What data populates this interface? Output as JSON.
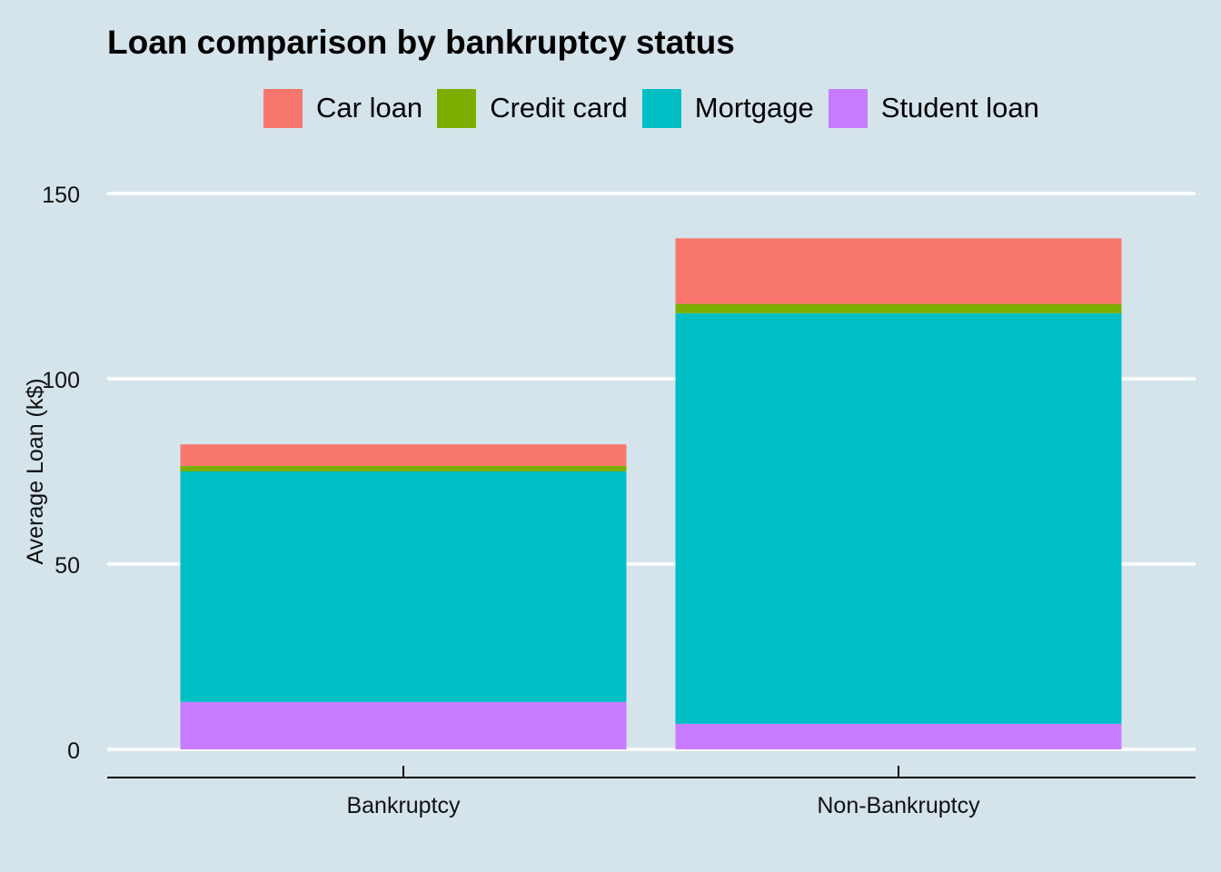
{
  "chart_data": {
    "type": "bar",
    "stacked": true,
    "title": "Loan comparison by bankruptcy status",
    "xlabel": "",
    "ylabel": "Average Loan (k$)",
    "categories": [
      "Bankruptcy",
      "Non-Bankruptcy"
    ],
    "ylim": [
      0,
      160
    ],
    "yticks": [
      0,
      50,
      100,
      150
    ],
    "grid": "horizontal",
    "legend_position": "top",
    "series": [
      {
        "name": "Student loan",
        "color": "#c77cff",
        "values": [
          12.8,
          6.9
        ]
      },
      {
        "name": "Mortgage",
        "color": "#00bfc4",
        "values": [
          62.2,
          110.8
        ]
      },
      {
        "name": "Credit card",
        "color": "#7cae00",
        "values": [
          1.5,
          2.5
        ]
      },
      {
        "name": "Car loan",
        "color": "#f8766d",
        "values": [
          5.8,
          17.7
        ]
      }
    ],
    "legend_order": [
      "Car loan",
      "Credit card",
      "Mortgage",
      "Student loan"
    ]
  }
}
